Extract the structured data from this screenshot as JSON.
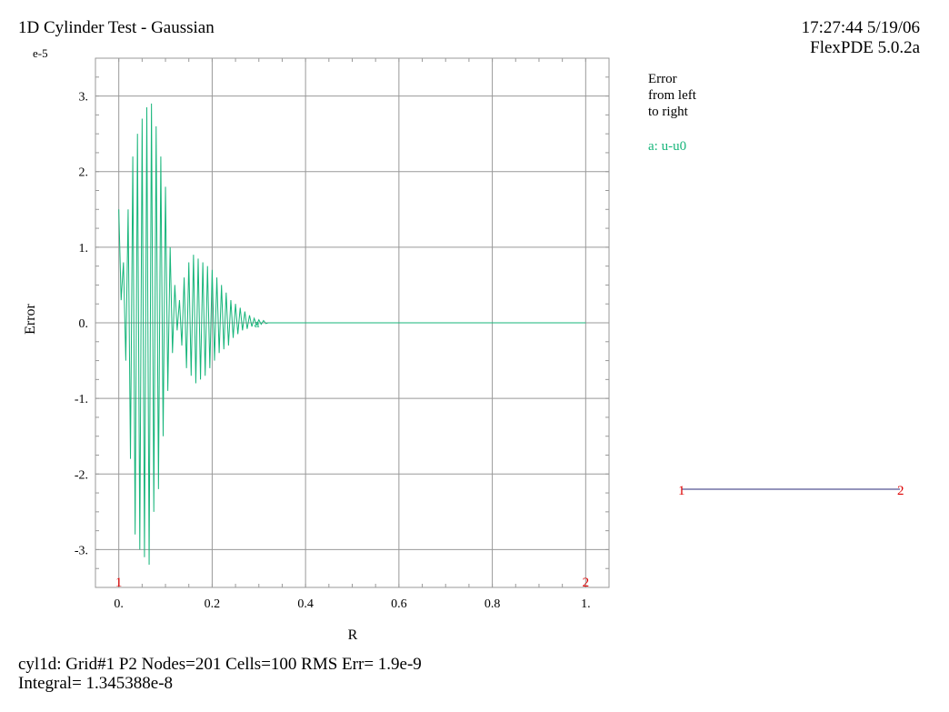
{
  "header": {
    "title": "1D Cylinder Test - Gaussian",
    "timestamp": "17:27:44 5/19/06",
    "version": "FlexPDE 5.0.2a"
  },
  "legend": {
    "title_lines": [
      "Error",
      "from left",
      "to right"
    ],
    "series_label": "a: u-u0",
    "path_start": "1",
    "path_end": "2"
  },
  "colors": {
    "series": "#16b57a",
    "grid": "#999999",
    "marker": "#dd0000",
    "path_line": "#2a2a7a"
  },
  "chart_data": {
    "type": "line",
    "title": "1D Cylinder Test - Gaussian",
    "xlabel": "R",
    "ylabel": "Error",
    "y_exponent_label": "e-5",
    "xlim": [
      -0.05,
      1.05
    ],
    "ylim": [
      -3.5,
      3.5
    ],
    "x_ticks": [
      0,
      0.2,
      0.4,
      0.6,
      0.8,
      1
    ],
    "x_tick_labels": [
      "0.",
      "0.2",
      "0.4",
      "0.6",
      "0.8",
      "1."
    ],
    "y_ticks": [
      3,
      2,
      1,
      0,
      -1,
      -2,
      -3
    ],
    "y_tick_labels": [
      "3.",
      "2.",
      "1.",
      "0.",
      "-1.",
      "-2.",
      "-3."
    ],
    "grid": true,
    "endpoint_markers": [
      {
        "label": "1",
        "x": 0
      },
      {
        "label": "2",
        "x": 1
      }
    ],
    "series": [
      {
        "name": "a",
        "x": [
          0.0,
          0.005,
          0.01,
          0.015,
          0.02,
          0.025,
          0.03,
          0.035,
          0.04,
          0.045,
          0.05,
          0.055,
          0.06,
          0.065,
          0.07,
          0.075,
          0.08,
          0.085,
          0.09,
          0.095,
          0.1,
          0.105,
          0.11,
          0.115,
          0.12,
          0.125,
          0.13,
          0.135,
          0.14,
          0.145,
          0.15,
          0.155,
          0.16,
          0.165,
          0.17,
          0.175,
          0.18,
          0.185,
          0.19,
          0.195,
          0.2,
          0.205,
          0.21,
          0.215,
          0.22,
          0.225,
          0.23,
          0.235,
          0.24,
          0.245,
          0.25,
          0.255,
          0.26,
          0.265,
          0.27,
          0.275,
          0.28,
          0.285,
          0.29,
          0.295,
          0.3,
          0.305,
          0.31,
          0.315,
          0.32,
          0.4,
          0.6,
          0.8,
          1.0
        ],
        "y": [
          1.5,
          0.3,
          0.8,
          -0.5,
          1.5,
          -1.8,
          2.2,
          -2.8,
          2.5,
          -3.0,
          2.7,
          -3.1,
          2.85,
          -3.2,
          2.9,
          -2.5,
          2.6,
          -2.2,
          2.2,
          -1.5,
          1.8,
          -0.9,
          1.0,
          -0.4,
          0.5,
          -0.1,
          0.3,
          -0.3,
          0.6,
          -0.6,
          0.8,
          -0.7,
          0.9,
          -0.8,
          0.85,
          -0.75,
          0.8,
          -0.7,
          0.75,
          -0.6,
          0.7,
          -0.5,
          0.6,
          -0.4,
          0.5,
          -0.35,
          0.4,
          -0.3,
          0.3,
          -0.2,
          0.25,
          -0.15,
          0.2,
          -0.1,
          0.15,
          -0.08,
          0.1,
          -0.05,
          0.06,
          -0.03,
          0.04,
          -0.02,
          0.03,
          -0.01,
          0.0,
          0.0,
          0.0,
          0.0,
          0.0
        ]
      }
    ]
  },
  "footer": {
    "line1": "cyl1d:  Grid#1  P2  Nodes=201 Cells=100 RMS Err= 1.9e-9",
    "line2": "Integral=  1.345388e-8"
  }
}
